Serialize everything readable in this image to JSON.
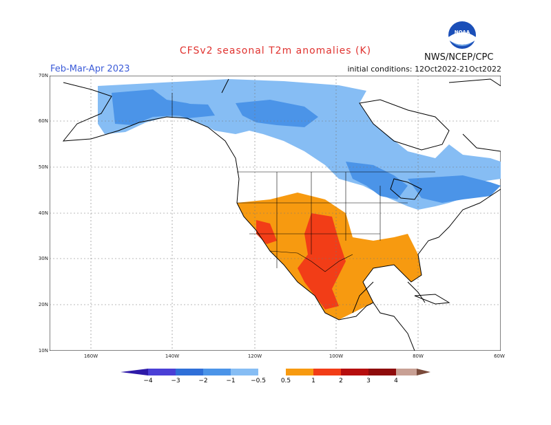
{
  "title": "CFSv2 seasonal T2m anomalies (K)",
  "period": "Feb-Mar-Apr 2023",
  "initial_conditions": "initial conditions: 12Oct2022-21Oct2022",
  "org": "NWS/NCEP/CPC",
  "logo_text": "NOAA",
  "lat_labels": [
    "70N",
    "60N",
    "50N",
    "40N",
    "30N",
    "20N",
    "10N"
  ],
  "lon_labels": [
    "160W",
    "140W",
    "120W",
    "100W",
    "80W",
    "60W"
  ],
  "colorbar": {
    "ticks": [
      "−4",
      "−3",
      "−2",
      "−1",
      "−0.5",
      "0.5",
      "1",
      "2",
      "3",
      "4"
    ],
    "colors": [
      "#2e1aa8",
      "#4a3fd6",
      "#2f6fd8",
      "#4b94e8",
      "#86bdf4",
      "#ffffff",
      "#f79a10",
      "#f23d17",
      "#b60e0e",
      "#8e0b0b",
      "#c8a094",
      "#7a4a3a"
    ]
  },
  "anomaly_colors": {
    "cold_strong": "#4b94e8",
    "cold_weak": "#86bdf4",
    "warm_weak": "#f79a10",
    "warm_mid": "#f23d17"
  }
}
